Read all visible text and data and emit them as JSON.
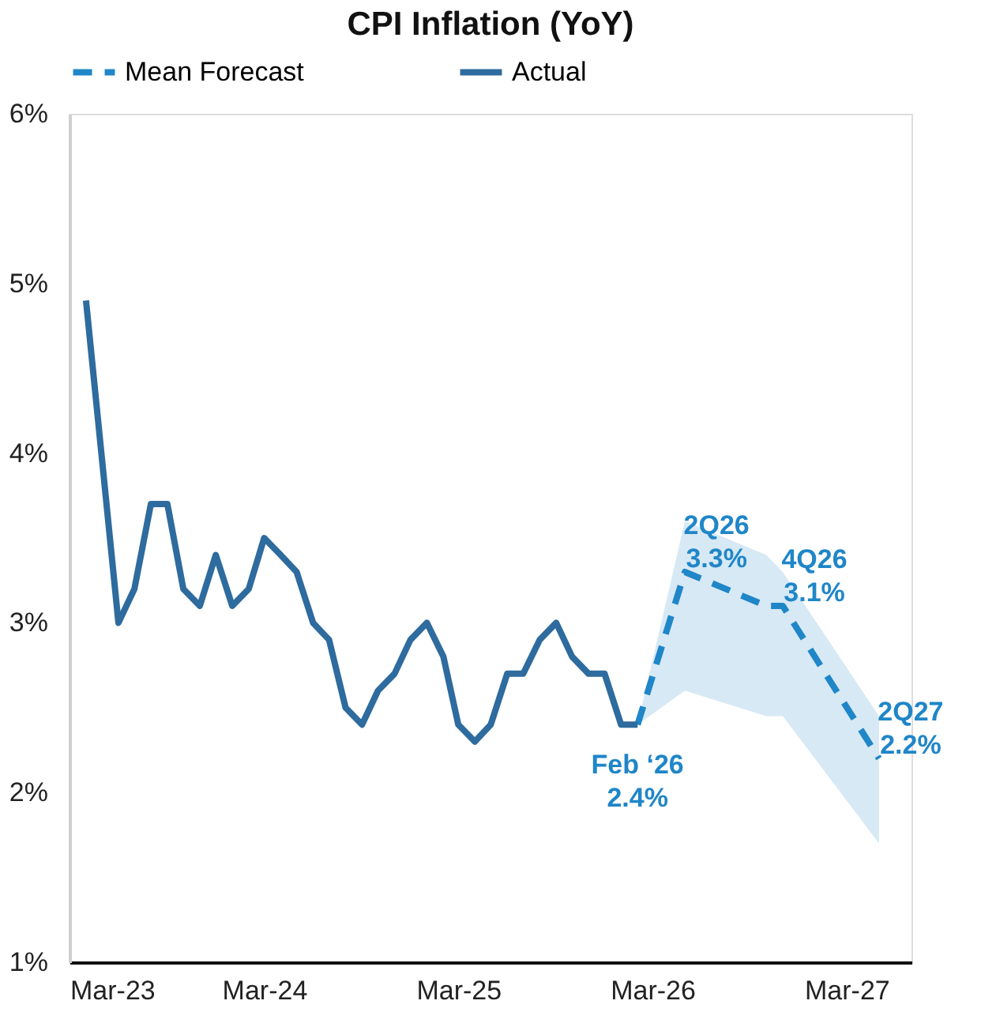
{
  "chart_data": {
    "type": "line",
    "title": "CPI Inflation (YoY)",
    "series": [
      {
        "name": "Mean Forecast",
        "color": "#1f86c8",
        "line_style": "dashed",
        "x": [
          "2026-02",
          "2026-05",
          "2026-10",
          "2026-11",
          "2027-05"
        ],
        "values": [
          2.4,
          3.3,
          3.1,
          3.1,
          2.2
        ],
        "lower": [
          2.4,
          2.6,
          2.45,
          2.45,
          1.7
        ],
        "upper": [
          2.4,
          3.6,
          3.4,
          3.3,
          2.45
        ]
      },
      {
        "name": "Actual",
        "color": "#2e6b9e",
        "line_style": "solid",
        "x": [
          "2023-04",
          "2023-06",
          "2023-07",
          "2023-08",
          "2023-09",
          "2023-10",
          "2023-11",
          "2023-12",
          "2024-01",
          "2024-02",
          "2024-03",
          "2024-04",
          "2024-05",
          "2024-06",
          "2024-07",
          "2024-08",
          "2024-09",
          "2024-10",
          "2024-11",
          "2024-12",
          "2025-01",
          "2025-02",
          "2025-03",
          "2025-04",
          "2025-05",
          "2025-06",
          "2025-07",
          "2025-08",
          "2025-09",
          "2025-10",
          "2025-11",
          "2025-12",
          "2026-01",
          "2026-02"
        ],
        "values": [
          4.9,
          3.0,
          3.2,
          3.7,
          3.7,
          3.2,
          3.1,
          3.4,
          3.1,
          3.2,
          3.5,
          3.4,
          3.3,
          3.0,
          2.9,
          2.5,
          2.4,
          2.6,
          2.7,
          2.9,
          3.0,
          2.8,
          2.4,
          2.3,
          2.4,
          2.7,
          2.7,
          2.9,
          3.0,
          2.8,
          2.7,
          2.7,
          2.4,
          2.4
        ]
      }
    ],
    "annotations": [
      {
        "text": "Feb ‘26\n2.4%",
        "x": "2026-02",
        "y": 2.4
      },
      {
        "text": "2Q26\n3.3%",
        "x": "2026-05",
        "y": 3.3
      },
      {
        "text": "4Q26\n3.1%",
        "x": "2026-11",
        "y": 3.1
      },
      {
        "text": "2Q27\n2.2%",
        "x": "2027-05",
        "y": 2.2
      }
    ],
    "xlim": [
      "2023-03",
      "2027-07"
    ],
    "xticks": [
      {
        "value": "2023-03",
        "label": "Mar-23"
      },
      {
        "value": "2024-03",
        "label": "Mar-24"
      },
      {
        "value": "2025-03",
        "label": "Mar-25"
      },
      {
        "value": "2026-03",
        "label": "Mar-26"
      },
      {
        "value": "2027-03",
        "label": "Mar-27"
      }
    ],
    "ylim": [
      1,
      6
    ],
    "yticks": [
      {
        "value": 1,
        "label": "1%"
      },
      {
        "value": 2,
        "label": "2%"
      },
      {
        "value": 3,
        "label": "3%"
      },
      {
        "value": 4,
        "label": "4%"
      },
      {
        "value": 5,
        "label": "5%"
      },
      {
        "value": 6,
        "label": "6%"
      }
    ],
    "grid": false,
    "legend": "top",
    "marker": "none"
  }
}
